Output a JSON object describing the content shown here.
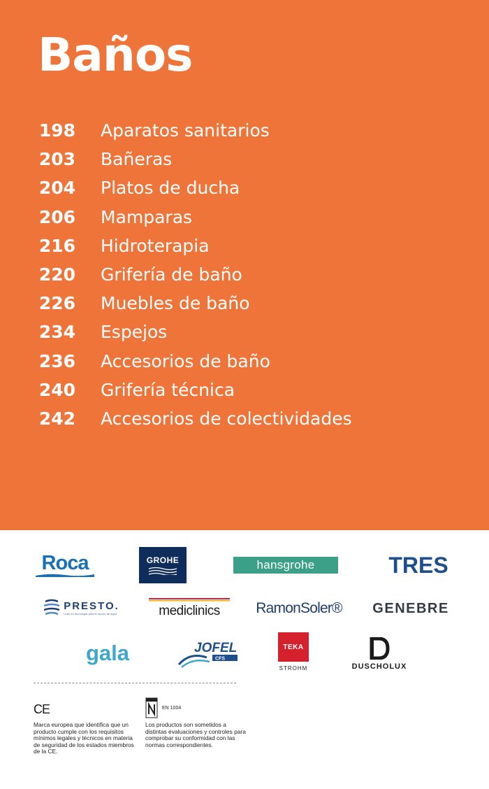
{
  "header": {
    "title": "Baños",
    "background_color": "#ef7439"
  },
  "toc": [
    {
      "page": "198",
      "label": "Aparatos sanitarios"
    },
    {
      "page": "203",
      "label": "Bañeras"
    },
    {
      "page": "204",
      "label": "Platos de ducha"
    },
    {
      "page": "206",
      "label": "Mamparas"
    },
    {
      "page": "216",
      "label": "Hidroterapia"
    },
    {
      "page": "220",
      "label": "Grifería de baño"
    },
    {
      "page": "226",
      "label": "Muebles de baño"
    },
    {
      "page": "234",
      "label": "Espejos"
    },
    {
      "page": "236",
      "label": "Accesorios de baño"
    },
    {
      "page": "240",
      "label": "Grifería técnica"
    },
    {
      "page": "242",
      "label": "Accesorios de colectividades"
    }
  ],
  "brands": {
    "roca": "Roca",
    "grohe": "GROHE",
    "hansgrohe": "hansgrohe",
    "tres": "TRES",
    "presto": "PRESTO.",
    "presto_tagline": "Líder en tecnología para el ahorro de agua",
    "mediclinics": "mediclinics",
    "ramonsoler": "RamonSoler®",
    "genebre": "GENEBRE",
    "gala": "gala",
    "jofel": "JOFEL",
    "jofel_sub": "CFS",
    "teka": "TEKA",
    "teka_sub": "STROHM",
    "duscholux": "DUSCHOLUX"
  },
  "certifications": {
    "ce_mark": "CE",
    "ce_text": "Marca europea que identifica que un producto cumple con los requisitos mínimos legales y técnicos en materia de seguridad de los estados miembros de la CE.",
    "n_label": "EN 1004",
    "n_text": "Los productos son sometidos a distintas evaluaciones y controles para comprobar su conformidad con las normas correspondientes."
  }
}
